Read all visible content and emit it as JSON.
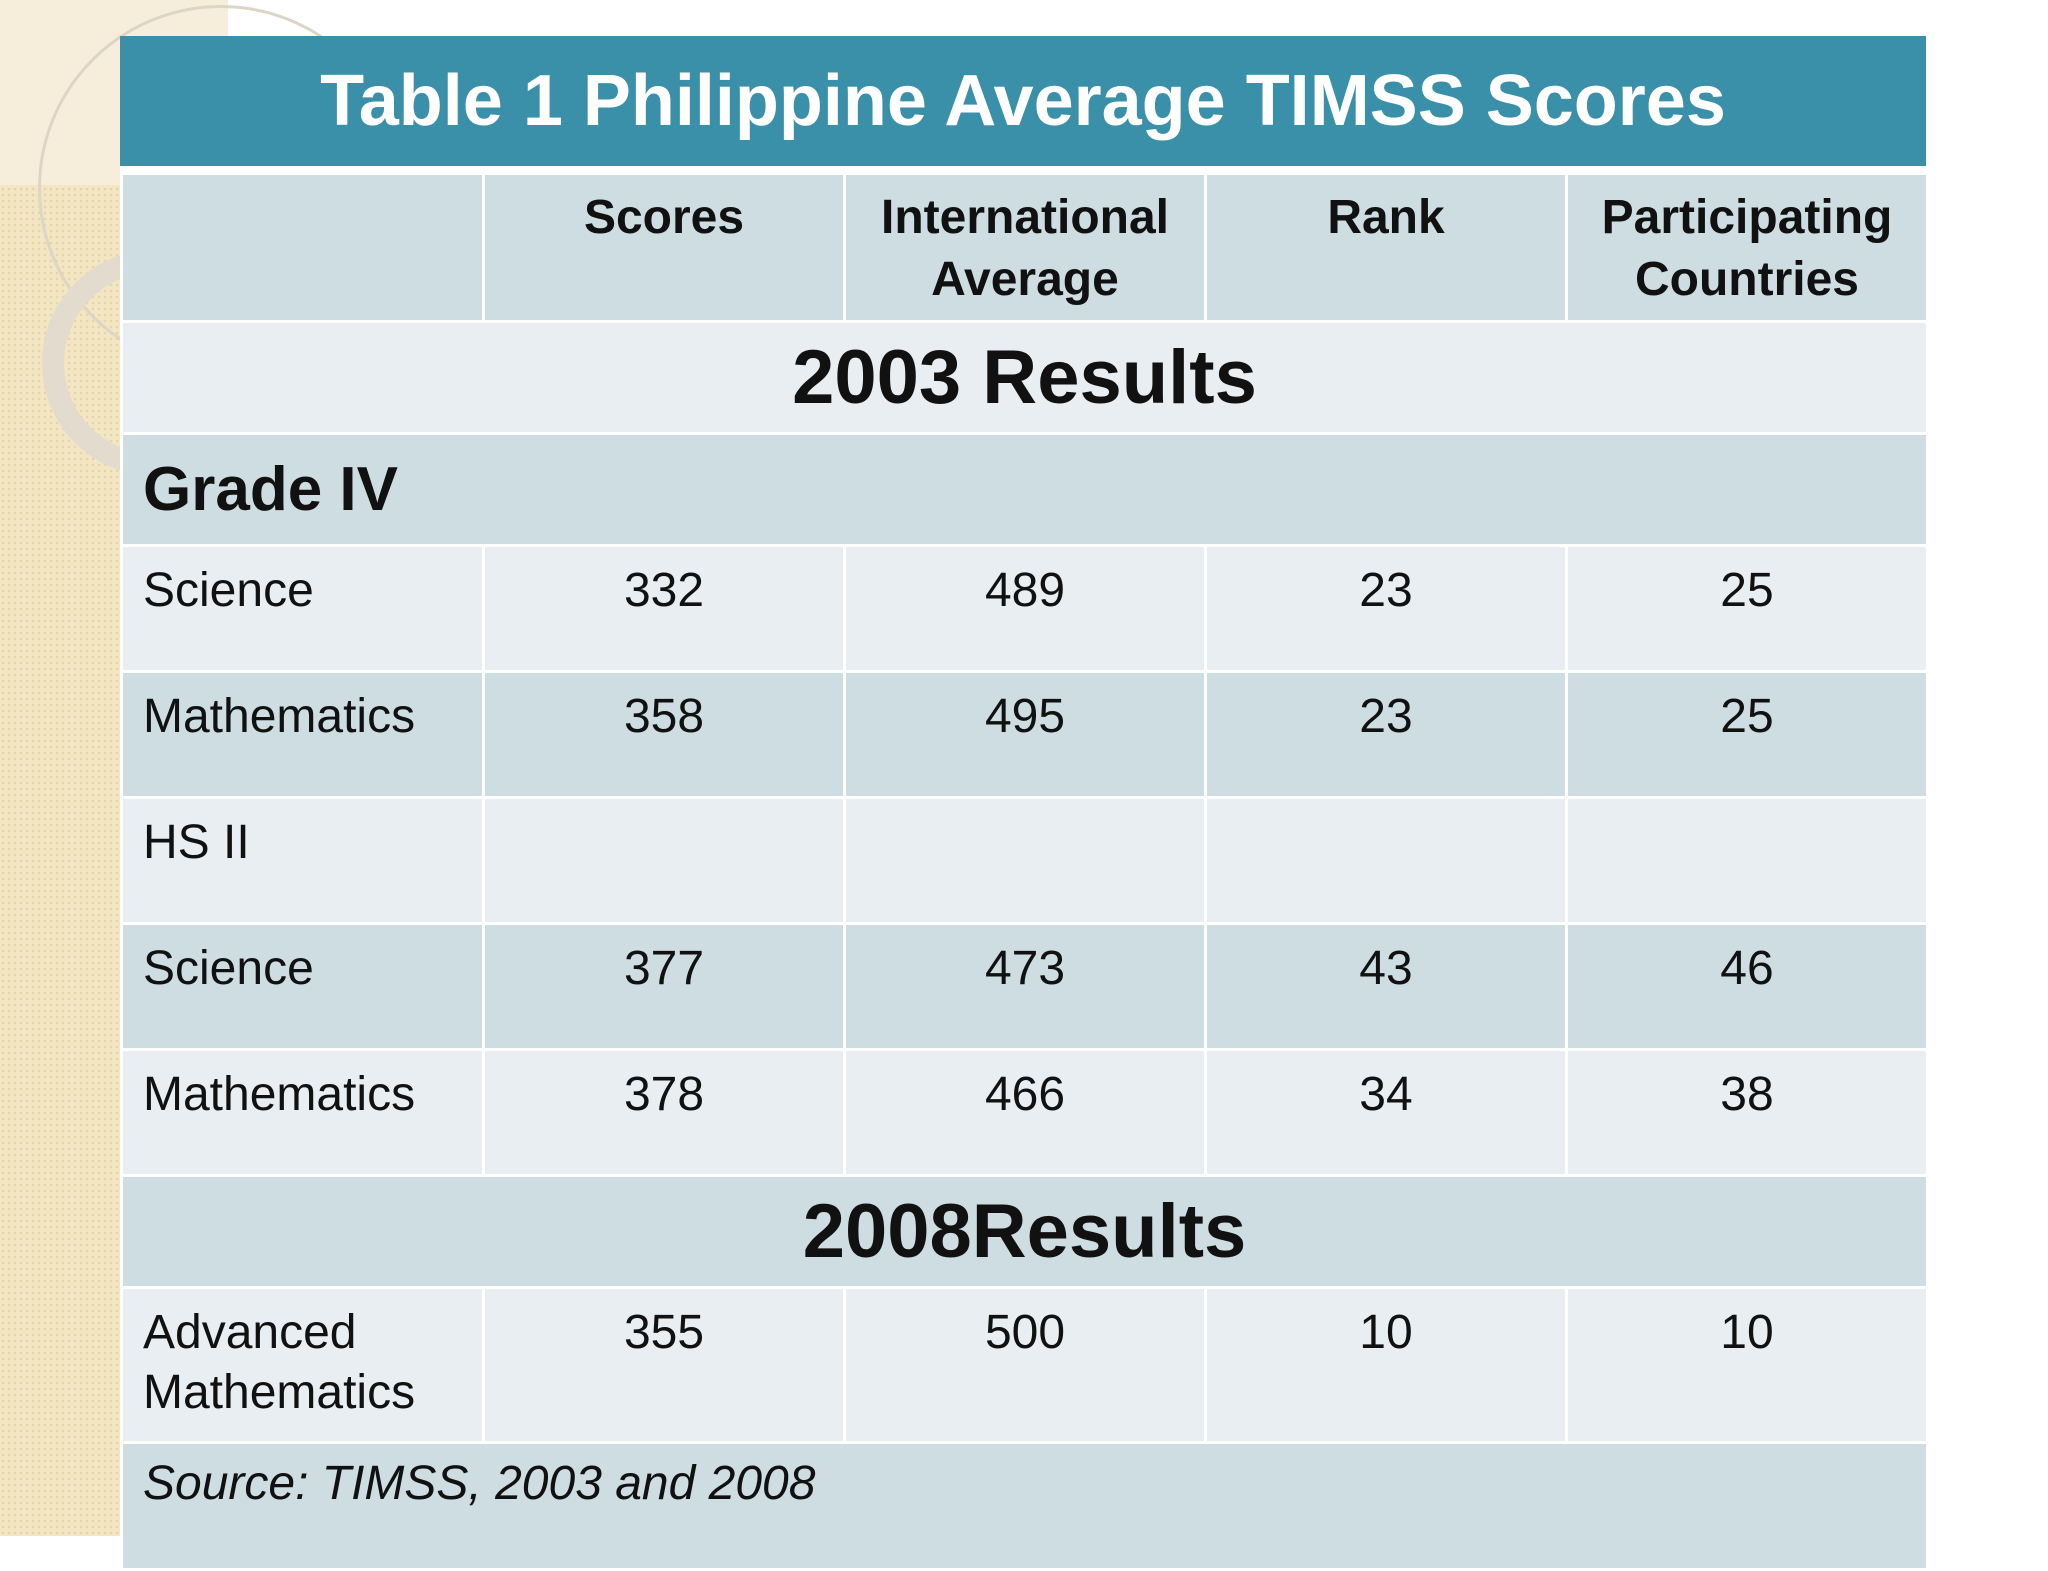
{
  "title": "Table 1 Philippine Average TIMSS Scores",
  "headers": [
    "",
    "Scores",
    "International Average",
    "Rank",
    "Participating Countries"
  ],
  "sections": {
    "s2003": "2003 Results",
    "s2008": "2008Results"
  },
  "groups": {
    "grade4": "Grade IV"
  },
  "rows": [
    {
      "label": "Science",
      "scores": "332",
      "intl_avg": "489",
      "rank": "23",
      "countries": "25"
    },
    {
      "label": "Mathematics",
      "scores": "358",
      "intl_avg": "495",
      "rank": "23",
      "countries": "25"
    },
    {
      "label": "HS II",
      "scores": "",
      "intl_avg": "",
      "rank": "",
      "countries": ""
    },
    {
      "label": "Science",
      "scores": "377",
      "intl_avg": "473",
      "rank": "43",
      "countries": "46"
    },
    {
      "label": "Mathematics",
      "scores": "378",
      "intl_avg": "466",
      "rank": "34",
      "countries": "38"
    },
    {
      "label": "Advanced Mathematics",
      "scores": "355",
      "intl_avg": "500",
      "rank": "10",
      "countries": "10"
    }
  ],
  "source": "Source: TIMSS, 2003 and 2008"
}
